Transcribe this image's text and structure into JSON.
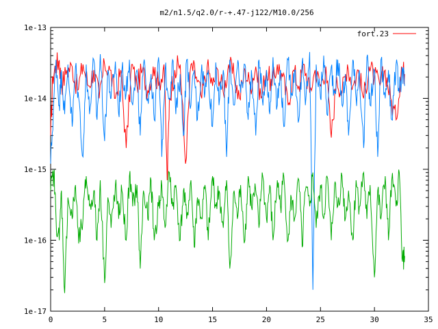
{
  "chart_data": {
    "type": "line",
    "title": "m2/n1.5/q2.0/r-+.47-j122/M10.0/256",
    "xlabel": "",
    "ylabel": "",
    "xlim": [
      0,
      35
    ],
    "ylim": [
      1e-17,
      1e-13
    ],
    "yscale": "log",
    "grid": false,
    "legend_position": "top-right",
    "x_ticks": [
      0,
      5,
      10,
      15,
      20,
      25,
      30,
      35
    ],
    "x_tick_labels": [
      "0",
      "5",
      "10",
      "15",
      "20",
      "25",
      "30",
      "35"
    ],
    "y_ticks": [
      1e-17,
      1e-16,
      1e-15,
      1e-14,
      1e-13
    ],
    "y_tick_labels": [
      "1e-17",
      "1e-16",
      "1e-15",
      "1e-14",
      "1e-13"
    ],
    "x_end": 32.8,
    "series": [
      {
        "name": "fort.23",
        "color": "#ff0000",
        "x": [
          0,
          0.2,
          0.5,
          0.8,
          1.0,
          1.5,
          2.0,
          2.5,
          3.0,
          3.5,
          4.0,
          4.5,
          5.0,
          5.5,
          6.0,
          6.5,
          7.0,
          7.5,
          8.0,
          8.5,
          9.0,
          9.5,
          10.0,
          10.5,
          10.8,
          11.0,
          11.5,
          12.0,
          12.5,
          13.0,
          13.5,
          14.0,
          14.5,
          15.0,
          15.5,
          16.0,
          16.5,
          17.0,
          17.5,
          18.0,
          18.5,
          19.0,
          19.5,
          20.0,
          20.5,
          21.0,
          21.5,
          22.0,
          22.5,
          23.0,
          23.5,
          24.0,
          24.5,
          25.0,
          25.5,
          26.0,
          26.5,
          27.0,
          27.5,
          28.0,
          28.5,
          29.0,
          29.5,
          30.0,
          30.5,
          31.0,
          31.5,
          32.0,
          32.5,
          32.8
        ],
        "y": [
          3e-15,
          2e-14,
          3e-14,
          3.4e-14,
          1.5e-14,
          2.5e-14,
          2.8e-14,
          1.3e-14,
          3e-14,
          1.5e-14,
          2.5e-14,
          1e-14,
          3e-14,
          2.5e-14,
          1e-14,
          2.5e-14,
          2e-15,
          3e-14,
          1.5e-14,
          2.5e-14,
          1.3e-14,
          2.8e-14,
          1.5e-14,
          3e-14,
          7e-16,
          1e-14,
          2.5e-14,
          3e-14,
          1.2e-15,
          3e-14,
          2e-14,
          1e-14,
          2.8e-14,
          1.5e-14,
          2.5e-14,
          1.2e-14,
          3e-14,
          2e-14,
          1e-14,
          2.5e-14,
          1.5e-14,
          2.8e-14,
          1e-14,
          2.5e-14,
          1.5e-14,
          3e-14,
          2e-14,
          8e-15,
          2.5e-14,
          1.5e-14,
          3e-14,
          1.2e-14,
          2.5e-14,
          1.5e-14,
          2.8e-14,
          2.8e-15,
          2e-14,
          1.2e-14,
          3e-14,
          1.5e-14,
          2.5e-14,
          1e-14,
          2.8e-14,
          2e-14,
          1.5e-14,
          2.5e-14,
          1e-14,
          5e-15,
          2.8e-14,
          2.2e-14
        ]
      },
      {
        "name": "",
        "color": "#0080ff",
        "x": [
          0,
          0.3,
          0.5,
          0.8,
          1.0,
          1.3,
          1.6,
          2.0,
          2.3,
          2.6,
          3.0,
          3.3,
          3.6,
          4.0,
          4.3,
          4.6,
          5.0,
          5.3,
          5.6,
          6.0,
          6.3,
          6.6,
          7.0,
          7.3,
          7.6,
          8.0,
          8.3,
          8.6,
          9.0,
          9.3,
          9.6,
          10.0,
          10.3,
          10.6,
          11.0,
          11.3,
          11.6,
          12.0,
          12.3,
          12.6,
          13.0,
          13.3,
          13.6,
          14.0,
          14.3,
          14.6,
          15.0,
          15.3,
          15.6,
          16.0,
          16.3,
          16.6,
          17.0,
          17.3,
          17.6,
          18.0,
          18.3,
          18.6,
          19.0,
          19.3,
          19.6,
          20.0,
          20.3,
          20.6,
          21.0,
          21.3,
          21.6,
          22.0,
          22.3,
          22.6,
          23.0,
          23.3,
          23.6,
          24.0,
          24.3,
          24.6,
          25.0,
          25.3,
          25.6,
          26.0,
          26.3,
          26.6,
          27.0,
          27.3,
          27.6,
          28.0,
          28.3,
          28.6,
          29.0,
          29.3,
          29.6,
          30.0,
          30.3,
          30.6,
          31.0,
          31.3,
          31.6,
          32.0,
          32.3,
          32.6,
          32.8
        ],
        "y": [
          1.2e-15,
          1e-14,
          3.5e-14,
          8e-15,
          2.5e-14,
          6e-15,
          3e-14,
          4e-15,
          2.8e-14,
          1e-14,
          1.5e-15,
          3e-14,
          6e-15,
          3.5e-14,
          5e-15,
          4.2e-14,
          2.5e-15,
          2.5e-14,
          1e-14,
          3.3e-14,
          6e-15,
          2.5e-14,
          1.2e-14,
          3.5e-14,
          8e-15,
          2.5e-14,
          3e-15,
          3e-14,
          1e-14,
          2.2e-14,
          5e-15,
          3.8e-14,
          1.5e-15,
          2.5e-14,
          1e-14,
          3.5e-14,
          6e-15,
          2.2e-14,
          3e-15,
          3.5e-14,
          8e-15,
          2.5e-14,
          5e-15,
          3e-14,
          1.2e-14,
          2.5e-14,
          4e-15,
          3.2e-14,
          8e-15,
          2.5e-14,
          1.5e-15,
          3.5e-14,
          8e-15,
          2.8e-14,
          1.2e-14,
          3e-14,
          5e-15,
          2.5e-14,
          3e-15,
          3.5e-14,
          1e-14,
          2.5e-14,
          6e-15,
          3.8e-14,
          8e-15,
          2.5e-14,
          4e-15,
          3.5e-14,
          1.2e-14,
          2.5e-14,
          5e-15,
          3.2e-14,
          8e-15,
          4.5e-14,
          2e-17,
          3e-14,
          1e-14,
          4e-14,
          6e-15,
          2.8e-14,
          1.2e-14,
          3.5e-14,
          8e-15,
          2.2e-14,
          3e-15,
          3.5e-14,
          1e-14,
          2.5e-14,
          2e-15,
          3.8e-14,
          8e-15,
          2.5e-14,
          1.5e-15,
          3.5e-14,
          1e-14,
          2.5e-14,
          5e-15,
          3e-14,
          1.2e-14,
          2.5e-14,
          1.5e-14
        ]
      },
      {
        "name": "",
        "color": "#00aa00",
        "x": [
          0,
          0.3,
          0.5,
          0.8,
          1.0,
          1.3,
          1.6,
          2.0,
          2.3,
          2.6,
          3.0,
          3.3,
          3.6,
          4.0,
          4.3,
          4.6,
          5.0,
          5.3,
          5.6,
          6.0,
          6.3,
          6.6,
          7.0,
          7.3,
          7.6,
          8.0,
          8.3,
          8.6,
          9.0,
          9.3,
          9.6,
          10.0,
          10.3,
          10.6,
          11.0,
          11.3,
          11.6,
          12.0,
          12.3,
          12.6,
          13.0,
          13.3,
          13.6,
          14.0,
          14.3,
          14.6,
          15.0,
          15.3,
          15.6,
          16.0,
          16.3,
          16.6,
          17.0,
          17.3,
          17.6,
          18.0,
          18.3,
          18.6,
          19.0,
          19.3,
          19.6,
          20.0,
          20.3,
          20.6,
          21.0,
          21.3,
          21.6,
          22.0,
          22.3,
          22.6,
          23.0,
          23.3,
          23.6,
          24.0,
          24.3,
          24.6,
          25.0,
          25.3,
          25.6,
          26.0,
          26.3,
          26.6,
          27.0,
          27.3,
          27.6,
          28.0,
          28.3,
          28.6,
          29.0,
          29.3,
          29.6,
          30.0,
          30.3,
          30.6,
          31.0,
          31.3,
          31.6,
          32.0,
          32.3,
          32.6,
          32.8
        ],
        "y": [
          5e-16,
          9e-16,
          2e-16,
          1e-16,
          5e-16,
          1.8e-17,
          4e-16,
          2e-16,
          6e-16,
          9e-17,
          2e-16,
          8e-16,
          3e-16,
          5e-16,
          1e-16,
          7e-16,
          2.5e-17,
          4e-16,
          1.5e-16,
          6e-16,
          2e-16,
          5e-16,
          1e-16,
          8e-16,
          3e-16,
          6e-16,
          4e-17,
          5e-16,
          2e-16,
          7e-16,
          1e-16,
          3e-16,
          6e-16,
          1.5e-16,
          9e-16,
          3e-16,
          6e-16,
          1e-16,
          5e-16,
          2e-16,
          7e-16,
          8e-17,
          4e-16,
          2e-16,
          6e-16,
          1e-16,
          8e-16,
          3e-16,
          5e-16,
          1.5e-16,
          7e-16,
          4e-17,
          5e-16,
          2e-16,
          6e-16,
          1e-16,
          8e-16,
          3e-16,
          5e-16,
          1.5e-16,
          9e-16,
          2e-16,
          6e-16,
          1e-16,
          7e-16,
          3e-16,
          8e-16,
          1e-16,
          4e-16,
          2e-16,
          7e-16,
          8e-17,
          5e-16,
          3e-16,
          9e-16,
          1.5e-16,
          6e-16,
          2e-16,
          8e-16,
          1e-16,
          6e-16,
          3e-16,
          8e-16,
          2e-16,
          5e-16,
          1e-16,
          7e-16,
          3e-16,
          9e-16,
          2e-16,
          6e-16,
          3e-17,
          5e-16,
          2e-16,
          8e-16,
          1e-16,
          7e-16,
          3e-16,
          9e-16,
          5e-17,
          6e-17
        ]
      }
    ]
  }
}
